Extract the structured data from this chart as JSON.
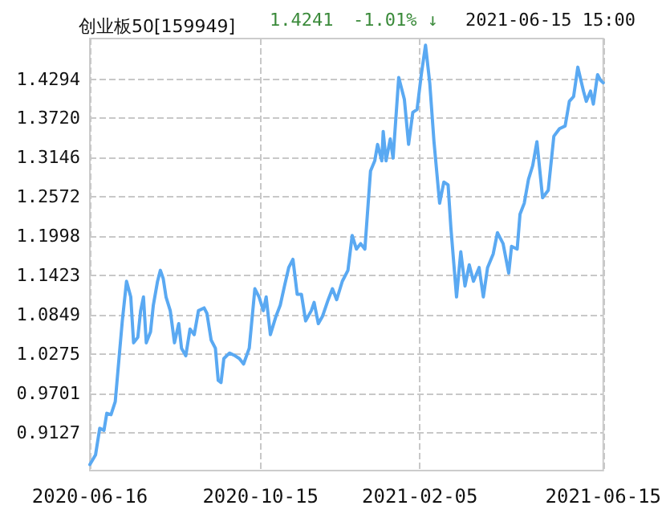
{
  "chart_data": {
    "type": "line",
    "title": "创业板50[159949]",
    "annotations": [
      "1.4241",
      "-1.01% ↓",
      "2021-06-15 15:00"
    ],
    "x": [
      "2020-06-16",
      "2020-06-20",
      "2020-06-23",
      "2020-06-26",
      "2020-06-28",
      "2020-07-01",
      "2020-07-04",
      "2020-07-07",
      "2020-07-09",
      "2020-07-12",
      "2020-07-15",
      "2020-07-17",
      "2020-07-20",
      "2020-07-22",
      "2020-07-24",
      "2020-07-26",
      "2020-07-29",
      "2020-07-31",
      "2020-08-03",
      "2020-08-05",
      "2020-08-07",
      "2020-08-09",
      "2020-08-12",
      "2020-08-15",
      "2020-08-18",
      "2020-08-20",
      "2020-08-23",
      "2020-08-26",
      "2020-08-29",
      "2020-09-01",
      "2020-09-05",
      "2020-09-07",
      "2020-09-10",
      "2020-09-13",
      "2020-09-15",
      "2020-09-17",
      "2020-09-19",
      "2020-09-23",
      "2020-09-27",
      "2020-09-30",
      "2020-10-03",
      "2020-10-07",
      "2020-10-11",
      "2020-10-14",
      "2020-10-17",
      "2020-10-19",
      "2020-10-22",
      "2020-10-26",
      "2020-10-29",
      "2020-11-01",
      "2020-11-04",
      "2020-11-07",
      "2020-11-10",
      "2020-11-13",
      "2020-11-16",
      "2020-11-20",
      "2020-11-22",
      "2020-11-25",
      "2020-11-28",
      "2020-12-02",
      "2020-12-05",
      "2020-12-08",
      "2020-12-12",
      "2020-12-16",
      "2020-12-19",
      "2020-12-22",
      "2020-12-25",
      "2020-12-28",
      "2021-01-01",
      "2021-01-04",
      "2021-01-06",
      "2021-01-09",
      "2021-01-10",
      "2021-01-12",
      "2021-01-15",
      "2021-01-17",
      "2021-01-21",
      "2021-01-25",
      "2021-01-28",
      "2021-01-31",
      "2021-02-03",
      "2021-02-06",
      "2021-02-09",
      "2021-02-12",
      "2021-02-15",
      "2021-02-19",
      "2021-02-22",
      "2021-02-25",
      "2021-02-27",
      "2021-03-03",
      "2021-03-06",
      "2021-03-09",
      "2021-03-12",
      "2021-03-15",
      "2021-03-19",
      "2021-03-22",
      "2021-03-25",
      "2021-03-29",
      "2021-04-01",
      "2021-04-05",
      "2021-04-09",
      "2021-04-11",
      "2021-04-15",
      "2021-04-17",
      "2021-04-20",
      "2021-04-23",
      "2021-04-26",
      "2021-04-29",
      "2021-05-03",
      "2021-05-07",
      "2021-05-11",
      "2021-05-15",
      "2021-05-19",
      "2021-05-22",
      "2021-05-25",
      "2021-05-28",
      "2021-06-01",
      "2021-06-03",
      "2021-06-06",
      "2021-06-08",
      "2021-06-11",
      "2021-06-13",
      "2021-06-15"
    ],
    "series": [
      {
        "color": "#5aa9f2",
        "values": [
          0.866,
          0.88,
          0.919,
          0.916,
          0.941,
          0.939,
          0.958,
          1.029,
          1.076,
          1.134,
          1.111,
          1.044,
          1.052,
          1.091,
          1.111,
          1.044,
          1.06,
          1.099,
          1.134,
          1.15,
          1.138,
          1.111,
          1.091,
          1.044,
          1.072,
          1.036,
          1.025,
          1.064,
          1.056,
          1.091,
          1.095,
          1.087,
          1.048,
          1.036,
          0.989,
          0.986,
          1.021,
          1.029,
          1.025,
          1.021,
          1.013,
          1.036,
          1.123,
          1.111,
          1.091,
          1.111,
          1.056,
          1.083,
          1.099,
          1.127,
          1.154,
          1.166,
          1.115,
          1.115,
          1.076,
          1.091,
          1.103,
          1.072,
          1.083,
          1.107,
          1.123,
          1.107,
          1.134,
          1.15,
          1.201,
          1.181,
          1.189,
          1.181,
          1.295,
          1.31,
          1.334,
          1.31,
          1.353,
          1.31,
          1.342,
          1.314,
          1.432,
          1.4,
          1.334,
          1.381,
          1.385,
          1.436,
          1.479,
          1.424,
          1.338,
          1.248,
          1.279,
          1.275,
          1.212,
          1.111,
          1.177,
          1.127,
          1.158,
          1.134,
          1.154,
          1.111,
          1.154,
          1.174,
          1.205,
          1.189,
          1.146,
          1.185,
          1.181,
          1.232,
          1.248,
          1.283,
          1.303,
          1.338,
          1.256,
          1.267,
          1.346,
          1.357,
          1.361,
          1.397,
          1.404,
          1.447,
          1.412,
          1.397,
          1.412,
          1.393,
          1.436,
          1.428,
          1.4241
        ]
      }
    ],
    "xlim": [
      "2020-06-16",
      "2021-06-15"
    ],
    "xticks": [
      "2020-06-16",
      "2020-10-15",
      "2021-02-05",
      "2021-06-15"
    ],
    "ylim": [
      0.8572,
      1.4888
    ],
    "yticks": [
      0.9127,
      0.9701,
      1.0275,
      1.0849,
      1.1423,
      1.1998,
      1.2572,
      1.3146,
      {
        "value": 1.372,
        "label": "1.3720"
      },
      1.4294
    ],
    "grid": true,
    "marker": "none",
    "line_style": "solid"
  }
}
